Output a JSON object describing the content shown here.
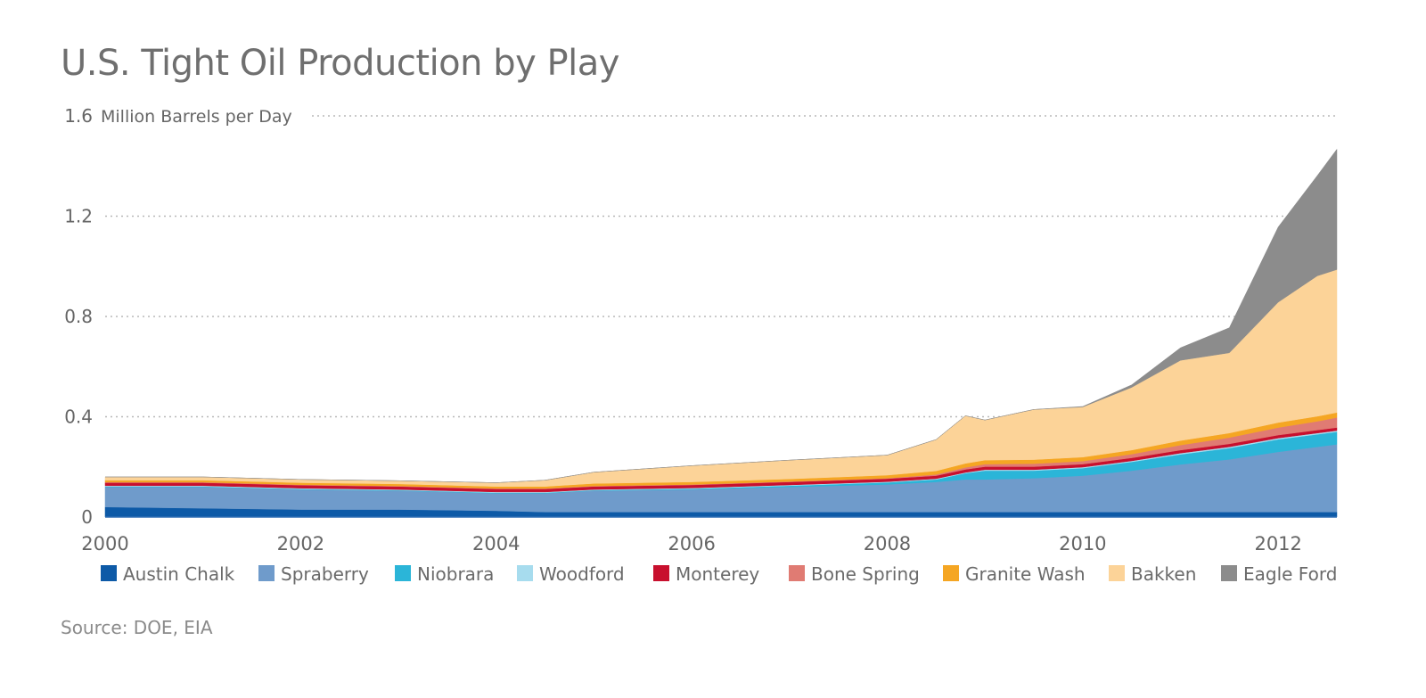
{
  "chart_data": {
    "type": "area",
    "stacked": true,
    "title": "U.S. Tight Oil Production by Play",
    "ylabel": "Million Barrels per Day",
    "ylim": [
      0,
      1.6
    ],
    "xlim": [
      2000,
      2012.6
    ],
    "yticks": [
      "0",
      "0.4",
      "0.8",
      "1.2",
      "1.6"
    ],
    "xticks": [
      "2000",
      "2002",
      "2004",
      "2006",
      "2008",
      "2010",
      "2012"
    ],
    "grid": "horizontal dotted",
    "legend": "bottom",
    "x": [
      2000,
      2001,
      2002,
      2003,
      2004,
      2004.5,
      2005,
      2006,
      2007,
      2008,
      2008.5,
      2008.8,
      2009,
      2009.5,
      2010,
      2010.5,
      2011,
      2011.5,
      2012,
      2012.4,
      2012.6
    ],
    "series": [
      {
        "name": "Austin Chalk",
        "color": "#0d5aa7",
        "values": [
          0.04,
          0.035,
          0.03,
          0.03,
          0.025,
          0.02,
          0.02,
          0.02,
          0.02,
          0.02,
          0.02,
          0.02,
          0.02,
          0.02,
          0.02,
          0.02,
          0.02,
          0.02,
          0.02,
          0.02,
          0.02
        ]
      },
      {
        "name": "Spraberry",
        "color": "#6f9bcb",
        "values": [
          0.08,
          0.085,
          0.08,
          0.075,
          0.07,
          0.075,
          0.085,
          0.09,
          0.1,
          0.11,
          0.12,
          0.13,
          0.13,
          0.135,
          0.145,
          0.165,
          0.19,
          0.21,
          0.24,
          0.26,
          0.27
        ]
      },
      {
        "name": "Niobrara",
        "color": "#2bb5d8",
        "values": [
          0.002,
          0.002,
          0.002,
          0.002,
          0.002,
          0.002,
          0.002,
          0.003,
          0.005,
          0.008,
          0.01,
          0.025,
          0.035,
          0.03,
          0.03,
          0.035,
          0.04,
          0.045,
          0.05,
          0.05,
          0.05
        ]
      },
      {
        "name": "Woodford",
        "color": "#a7dcee",
        "values": [
          0.003,
          0.003,
          0.003,
          0.003,
          0.003,
          0.003,
          0.003,
          0.003,
          0.003,
          0.003,
          0.003,
          0.003,
          0.004,
          0.004,
          0.004,
          0.004,
          0.005,
          0.005,
          0.005,
          0.005,
          0.005
        ]
      },
      {
        "name": "Monterey",
        "color": "#c8102e",
        "values": [
          0.012,
          0.012,
          0.012,
          0.012,
          0.012,
          0.012,
          0.012,
          0.012,
          0.012,
          0.012,
          0.012,
          0.012,
          0.012,
          0.012,
          0.012,
          0.012,
          0.012,
          0.012,
          0.012,
          0.012,
          0.012
        ]
      },
      {
        "name": "Bone Spring",
        "color": "#e07b73",
        "values": [
          0.002,
          0.002,
          0.002,
          0.002,
          0.002,
          0.002,
          0.002,
          0.002,
          0.002,
          0.002,
          0.005,
          0.008,
          0.01,
          0.012,
          0.012,
          0.015,
          0.02,
          0.025,
          0.03,
          0.035,
          0.04
        ]
      },
      {
        "name": "Granite Wash",
        "color": "#f5a623",
        "values": [
          0.008,
          0.008,
          0.008,
          0.008,
          0.008,
          0.008,
          0.01,
          0.01,
          0.01,
          0.012,
          0.014,
          0.016,
          0.016,
          0.016,
          0.016,
          0.016,
          0.018,
          0.018,
          0.02,
          0.02,
          0.02
        ]
      },
      {
        "name": "Bakken",
        "color": "#fcd398",
        "values": [
          0.013,
          0.013,
          0.013,
          0.013,
          0.015,
          0.025,
          0.045,
          0.065,
          0.075,
          0.08,
          0.125,
          0.19,
          0.16,
          0.2,
          0.2,
          0.25,
          0.32,
          0.32,
          0.48,
          0.56,
          0.57
        ]
      },
      {
        "name": "Eagle Ford",
        "color": "#8c8c8c",
        "values": [
          0,
          0,
          0,
          0,
          0,
          0,
          0,
          0,
          0,
          0,
          0,
          0,
          0,
          0,
          0.002,
          0.01,
          0.05,
          0.1,
          0.3,
          0.4,
          0.48
        ]
      }
    ]
  },
  "source": "Source: DOE, EIA"
}
